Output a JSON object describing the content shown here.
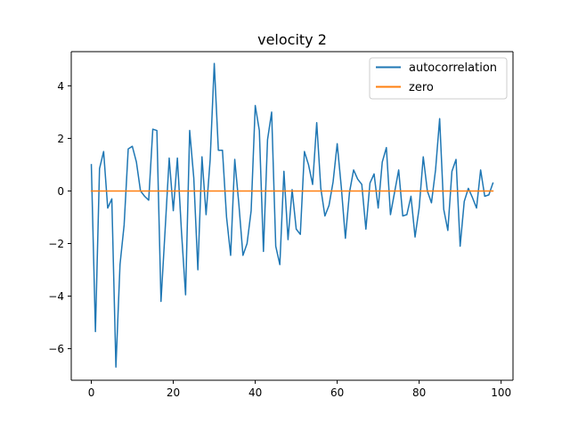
{
  "chart_data": {
    "type": "line",
    "title": "velocity 2",
    "xlabel": "",
    "ylabel": "",
    "xlim": [
      -4.9,
      102.9
    ],
    "ylim": [
      -7.2,
      5.3
    ],
    "xticks": [
      0,
      20,
      40,
      60,
      80,
      100
    ],
    "yticks": [
      -6,
      -4,
      -2,
      0,
      2,
      4
    ],
    "grid": false,
    "legend_position": "top-right",
    "series": [
      {
        "name": "autocorrelation",
        "color": "#1f77b4",
        "x": [
          0,
          1,
          2,
          3,
          4,
          5,
          6,
          7,
          8,
          9,
          10,
          11,
          12,
          13,
          14,
          15,
          16,
          17,
          18,
          19,
          20,
          21,
          22,
          23,
          24,
          25,
          26,
          27,
          28,
          29,
          30,
          31,
          32,
          33,
          34,
          35,
          36,
          37,
          38,
          39,
          40,
          41,
          42,
          43,
          44,
          45,
          46,
          47,
          48,
          49,
          50,
          51,
          52,
          53,
          54,
          55,
          56,
          57,
          58,
          59,
          60,
          61,
          62,
          63,
          64,
          65,
          66,
          67,
          68,
          69,
          70,
          71,
          72,
          73,
          74,
          75,
          76,
          77,
          78,
          79,
          80,
          81,
          82,
          83,
          84,
          85,
          86,
          87,
          88,
          89,
          90,
          91,
          92,
          93,
          94,
          95,
          96,
          97,
          98
        ],
        "y": [
          1.0,
          -5.35,
          0.85,
          1.5,
          -0.65,
          -0.3,
          -6.7,
          -2.8,
          -1.3,
          1.6,
          1.7,
          1.1,
          0.0,
          -0.2,
          -0.35,
          2.35,
          2.3,
          -4.2,
          -1.5,
          1.25,
          -0.75,
          1.25,
          -1.55,
          -3.95,
          2.3,
          0.5,
          -3.0,
          1.3,
          -0.9,
          1.2,
          4.85,
          1.55,
          1.55,
          -1.0,
          -2.45,
          1.2,
          -0.5,
          -2.45,
          -2.0,
          -0.75,
          3.25,
          2.3,
          -2.3,
          1.95,
          3.0,
          -2.1,
          -2.8,
          0.75,
          -1.85,
          0.05,
          -1.45,
          -1.65,
          1.5,
          1.0,
          0.25,
          2.6,
          0.1,
          -0.95,
          -0.55,
          0.35,
          1.8,
          0.15,
          -1.8,
          -0.05,
          0.8,
          0.45,
          0.25,
          -1.45,
          0.3,
          0.65,
          -0.65,
          1.1,
          1.65,
          -0.9,
          -0.05,
          0.8,
          -0.95,
          -0.9,
          -0.2,
          -1.75,
          -0.65,
          1.3,
          0.0,
          -0.45,
          0.8,
          2.75,
          -0.7,
          -1.5,
          0.75,
          1.2,
          -2.1,
          -0.4,
          0.1,
          -0.25,
          -0.65,
          0.8,
          -0.2,
          -0.15,
          0.3
        ]
      },
      {
        "name": "zero",
        "color": "#ff7f0e",
        "x": [
          0,
          98
        ],
        "y": [
          0,
          0
        ]
      }
    ]
  }
}
